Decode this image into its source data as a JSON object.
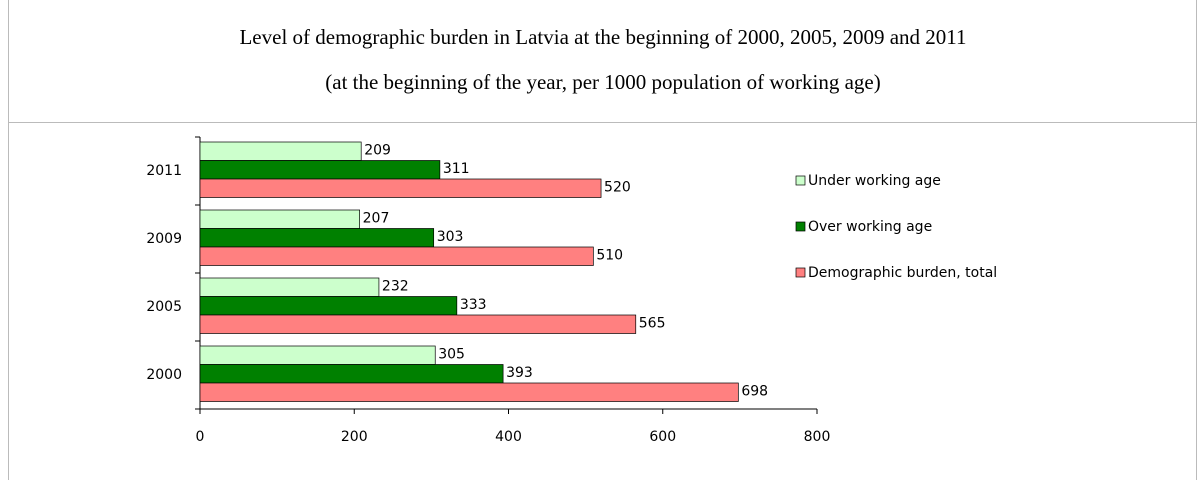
{
  "chart_data": {
    "type": "hbar",
    "title": "Level of demographic burden in Latvia at the beginning of 2000, 2005, 2009 and 2011",
    "subtitle": "(at the beginning of the year, per 1000 population of working age)",
    "categories": [
      "2000",
      "2005",
      "2009",
      "2011"
    ],
    "series": [
      {
        "name": "Under working age",
        "color": "#ccffcc",
        "values": [
          305,
          232,
          207,
          209
        ]
      },
      {
        "name": "Over working age",
        "color": "#008000",
        "values": [
          393,
          333,
          303,
          311
        ]
      },
      {
        "name": "Demographic burden, total",
        "color": "#ff8080",
        "values": [
          698,
          565,
          510,
          520
        ]
      }
    ],
    "xlim": [
      0,
      800
    ],
    "xticks": [
      0,
      200,
      400,
      600,
      800
    ],
    "legend": "right"
  }
}
